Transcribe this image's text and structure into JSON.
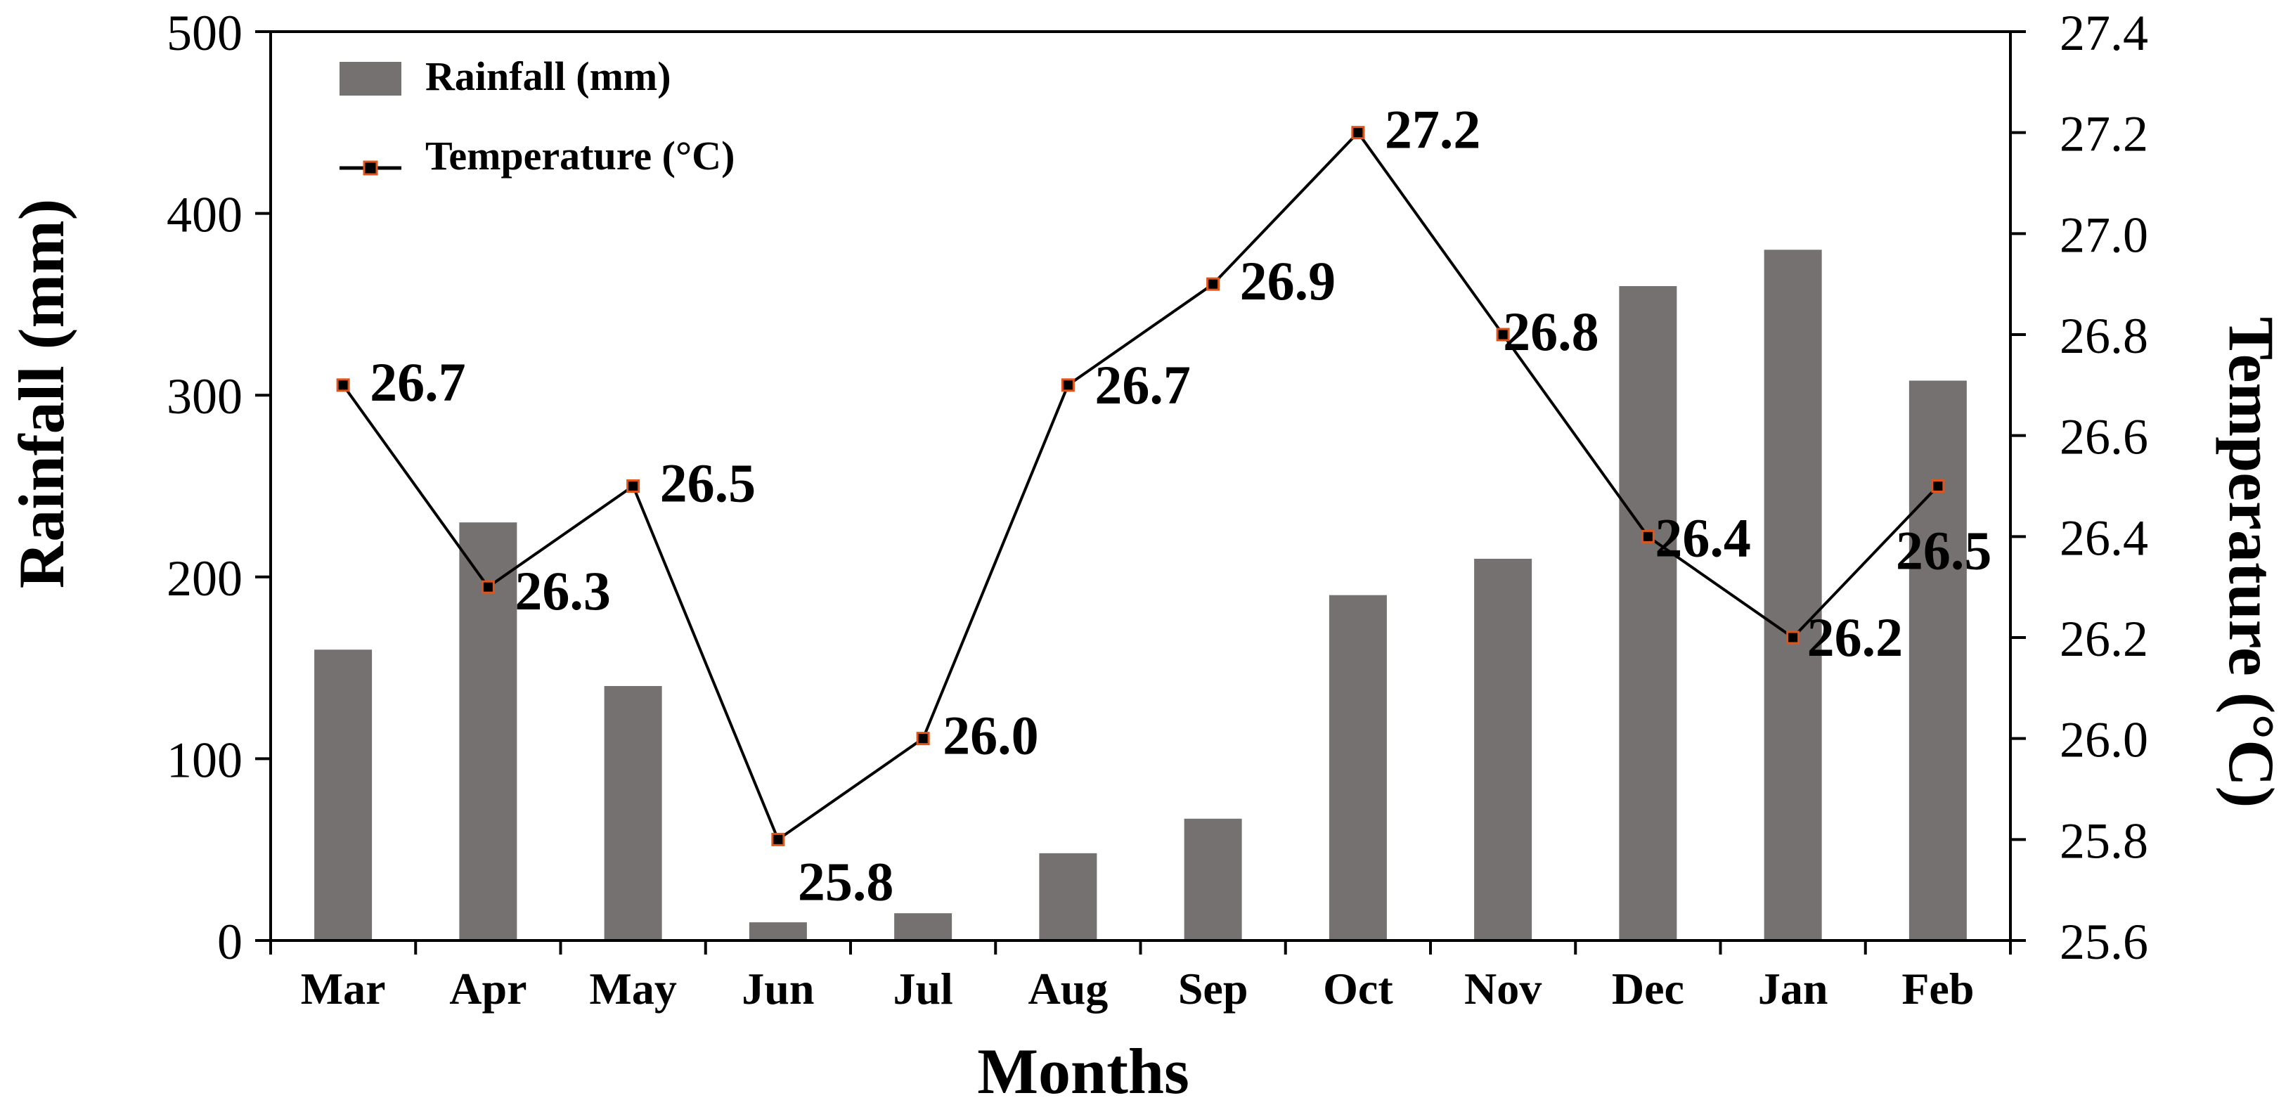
{
  "chart_data": {
    "type": "bar+line",
    "categories": [
      "Mar",
      "Apr",
      "May",
      "Jun",
      "Jul",
      "Aug",
      "Sep",
      "Oct",
      "Nov",
      "Dec",
      "Jan",
      "Feb"
    ],
    "series": [
      {
        "name": "Rainfall (mm)",
        "type": "bar",
        "axis": "left",
        "color": "#767171",
        "values": [
          160,
          230,
          140,
          10,
          15,
          48,
          67,
          190,
          210,
          360,
          380,
          308
        ]
      },
      {
        "name": "Temperature (°C)",
        "type": "line",
        "axis": "right",
        "color": "#000000",
        "marker_color": "#000000",
        "marker_border": "#e0541a",
        "values": [
          26.7,
          26.3,
          26.5,
          25.8,
          26.0,
          26.7,
          26.9,
          27.2,
          26.8,
          26.4,
          26.2,
          26.5
        ],
        "labels": [
          "26.7",
          "26.3",
          "26.5",
          "25.8",
          "26.0",
          "26.7",
          "26.9",
          "27.2",
          "26.8",
          "26.4",
          "26.2",
          "26.5"
        ]
      }
    ],
    "xlabel": "Months",
    "ylabel": "Rainfall (mm)",
    "y2label": "Temperature (°C)",
    "ylim": [
      0,
      500
    ],
    "y2lim": [
      25.6,
      27.4
    ],
    "yticks": [
      "0",
      "100",
      "200",
      "300",
      "400",
      "500"
    ],
    "y2ticks": [
      "25.6",
      "25.8",
      "26.0",
      "26.2",
      "26.4",
      "26.6",
      "26.8",
      "27.0",
      "27.2",
      "27.4"
    ],
    "legend": [
      "Rainfall (mm)",
      "Temperature (°C)"
    ],
    "legend_position": "top-left"
  }
}
